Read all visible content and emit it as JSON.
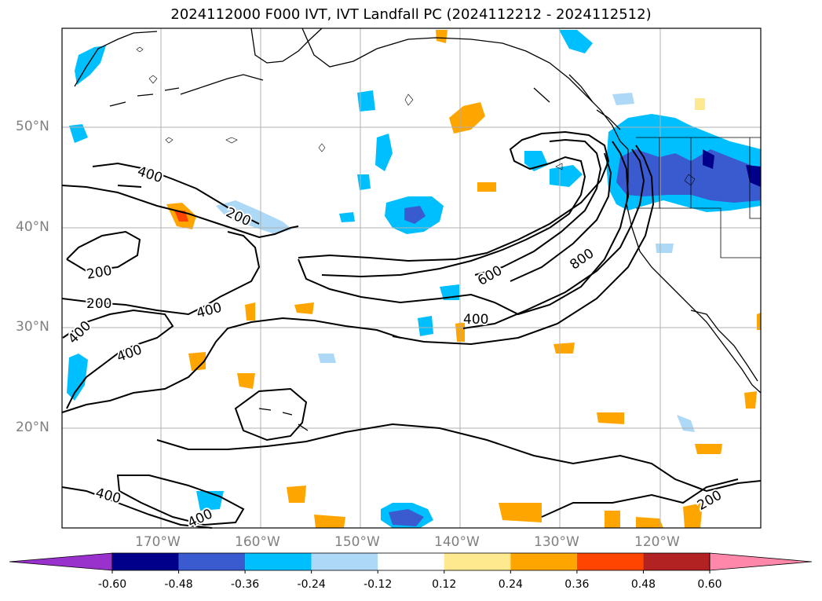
{
  "title": "2024112000 F000 IVT, IVT Landfall PC (2024112212 - 2024112512)",
  "lat_labels": [
    "50°N",
    "40°N",
    "30°N",
    "20°N"
  ],
  "lon_labels": [
    "170°W",
    "160°W",
    "150°W",
    "140°W",
    "130°W",
    "120°W"
  ],
  "contour_labels": [
    "400",
    "200",
    "200",
    "200",
    "400",
    "400",
    "400",
    "600",
    "800",
    "400",
    "400",
    "400",
    "200"
  ],
  "colorbar": {
    "ticks": [
      "-0.60",
      "-0.48",
      "-0.36",
      "-0.24",
      "-0.12",
      "0.12",
      "0.24",
      "0.36",
      "0.48",
      "0.60"
    ],
    "colors": [
      "#9932cc",
      "#00008b",
      "#3a5bd0",
      "#00bfff",
      "#add8f6",
      "#ffffff",
      "#ffe98f",
      "#ffa500",
      "#ff4500",
      "#b22222",
      "#ff88aa"
    ]
  }
}
